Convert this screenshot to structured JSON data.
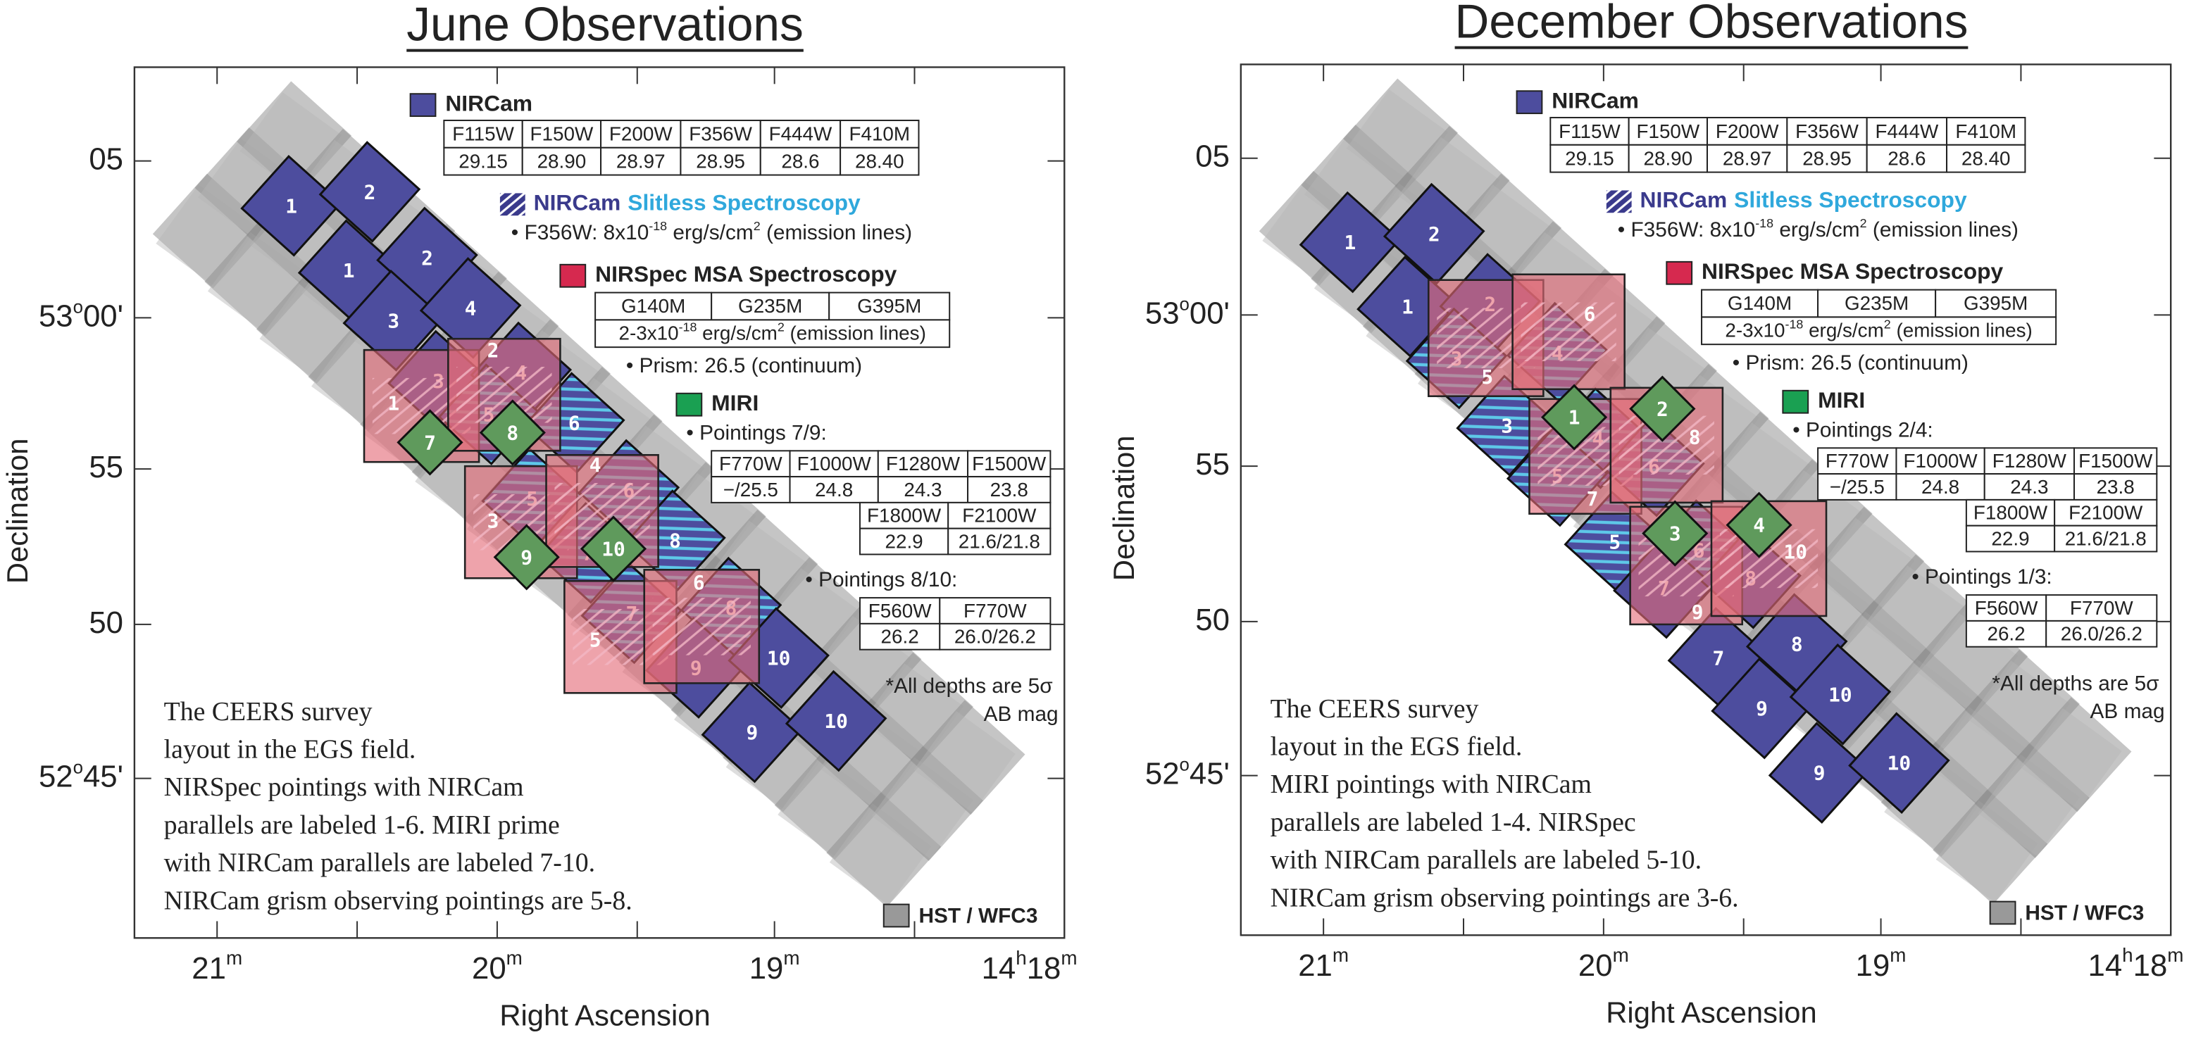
{
  "panels": [
    {
      "title": "June Observations",
      "x_axis_label": "Right Ascension",
      "y_axis_label": "Declination",
      "x_tick_labels": [
        [
          "21",
          "m"
        ],
        [
          "20",
          "m"
        ],
        [
          "19",
          "m"
        ],
        [
          "14",
          "h",
          "18",
          "m"
        ]
      ],
      "y_tick_labels": [
        [
          "05"
        ],
        [
          "53",
          "o",
          "00'"
        ],
        [
          "55"
        ],
        [
          "50"
        ],
        [
          "52",
          "o",
          "45'"
        ]
      ],
      "legend": {
        "nircam": {
          "label": "NIRCam",
          "table": [
            [
              "F115W",
              "F150W",
              "F200W",
              "F356W",
              "F444W",
              "F410M"
            ],
            [
              "29.15",
              "28.90",
              "28.97",
              "28.95",
              "28.6",
              "28.40"
            ]
          ]
        },
        "slitless": {
          "label": [
            "NIRCam",
            "Slitless Spectroscopy"
          ],
          "note": [
            "• F356W: 8x10",
            "-18",
            " erg/s/cm",
            "2",
            " (emission lines)"
          ]
        },
        "nirspec": {
          "label": "NIRSpec MSA Spectroscopy",
          "table_header": [
            "G140M",
            "G235M",
            "G395M"
          ],
          "table_note": [
            "2-3x10",
            "-18",
            " erg/s/cm",
            "2",
            " (emission lines)"
          ],
          "note": "• Prism: 26.5 (continuum)"
        },
        "miri": {
          "label": "MIRI",
          "groups": [
            {
              "heading": "• Pointings 7/9:",
              "tables": [
                [
                  [
                    "F770W",
                    "F1000W",
                    "F1280W",
                    "F1500W"
                  ],
                  [
                    "−/25.5",
                    "24.8",
                    "24.3",
                    "23.8"
                  ]
                ],
                [
                  [
                    "F1800W",
                    "F2100W"
                  ],
                  [
                    "22.9",
                    "21.6/21.8"
                  ]
                ]
              ]
            },
            {
              "heading": "• Pointings 8/10:",
              "tables": [
                [
                  [
                    "F560W",
                    "F770W"
                  ],
                  [
                    "26.2",
                    "26.0/26.2"
                  ]
                ]
              ]
            }
          ]
        },
        "depth_note": [
          "*All depths are 5σ",
          "AB mag"
        ],
        "hst": "HST / WFC3"
      },
      "caption": [
        "The CEERS survey",
        "layout in the EGS field.",
        "NIRSpec pointings with NIRCam",
        "parallels are labeled 1-6.  MIRI prime",
        "with NIRCam parallels are labeled 7-10.",
        "NIRCam grism observing pointings are 5-8."
      ],
      "nircam_labels": [
        "1",
        "2",
        "1",
        "2",
        "3",
        "4",
        "3",
        "4",
        "5",
        "6",
        "5",
        "6",
        "7",
        "8",
        "7",
        "8",
        "9",
        "10",
        "9",
        "10"
      ],
      "nirspec_labels": [
        "1",
        "2",
        "3",
        "4",
        "5",
        "6"
      ],
      "miri_labels": [
        "7",
        "8",
        "9",
        "10"
      ]
    },
    {
      "title": "December Observations",
      "x_axis_label": "Right Ascension",
      "y_axis_label": "Declination",
      "x_tick_labels": [
        [
          "21",
          "m"
        ],
        [
          "20",
          "m"
        ],
        [
          "19",
          "m"
        ],
        [
          "14",
          "h",
          "18",
          "m"
        ]
      ],
      "y_tick_labels": [
        [
          "05"
        ],
        [
          "53",
          "o",
          "00'"
        ],
        [
          "55"
        ],
        [
          "50"
        ],
        [
          "52",
          "o",
          "45'"
        ]
      ],
      "legend": {
        "nircam": {
          "label": "NIRCam",
          "table": [
            [
              "F115W",
              "F150W",
              "F200W",
              "F356W",
              "F444W",
              "F410M"
            ],
            [
              "29.15",
              "28.90",
              "28.97",
              "28.95",
              "28.6",
              "28.40"
            ]
          ]
        },
        "slitless": {
          "label": [
            "NIRCam",
            "Slitless Spectroscopy"
          ],
          "note": [
            "• F356W: 8x10",
            "-18",
            " erg/s/cm",
            "2",
            " (emission lines)"
          ]
        },
        "nirspec": {
          "label": "NIRSpec MSA Spectroscopy",
          "table_header": [
            "G140M",
            "G235M",
            "G395M"
          ],
          "table_note": [
            "2-3x10",
            "-18",
            " erg/s/cm",
            "2",
            " (emission lines)"
          ],
          "note": "• Prism: 26.5 (continuum)"
        },
        "miri": {
          "label": "MIRI",
          "groups": [
            {
              "heading": "• Pointings 2/4:",
              "tables": [
                [
                  [
                    "F770W",
                    "F1000W",
                    "F1280W",
                    "F1500W"
                  ],
                  [
                    "−/25.5",
                    "24.8",
                    "24.3",
                    "23.8"
                  ]
                ],
                [
                  [
                    "F1800W",
                    "F2100W"
                  ],
                  [
                    "22.9",
                    "21.6/21.8"
                  ]
                ]
              ]
            },
            {
              "heading": "• Pointings 1/3:",
              "tables": [
                [
                  [
                    "F560W",
                    "F770W"
                  ],
                  [
                    "26.2",
                    "26.0/26.2"
                  ]
                ]
              ]
            }
          ]
        },
        "depth_note": [
          "*All depths are 5σ",
          "AB mag"
        ],
        "hst": "HST / WFC3"
      },
      "caption": [
        "The CEERS survey",
        "layout in the EGS field.",
        "MIRI pointings with NIRCam",
        "parallels are labeled 1-4.  NIRSpec",
        "with NIRCam parallels are labeled 5-10.",
        "NIRCam grism observing pointings are 3-6."
      ],
      "nircam_labels": [
        "1",
        "2",
        "1",
        "2",
        "3",
        "4",
        "3",
        "4",
        "5",
        "6",
        "5",
        "6",
        "7",
        "8",
        "7",
        "8",
        "9",
        "10",
        "9",
        "10"
      ],
      "nirspec_labels": [
        "5",
        "6",
        "7",
        "8",
        "9",
        "10"
      ],
      "miri_labels": [
        "1",
        "2",
        "3",
        "4"
      ]
    }
  ]
}
